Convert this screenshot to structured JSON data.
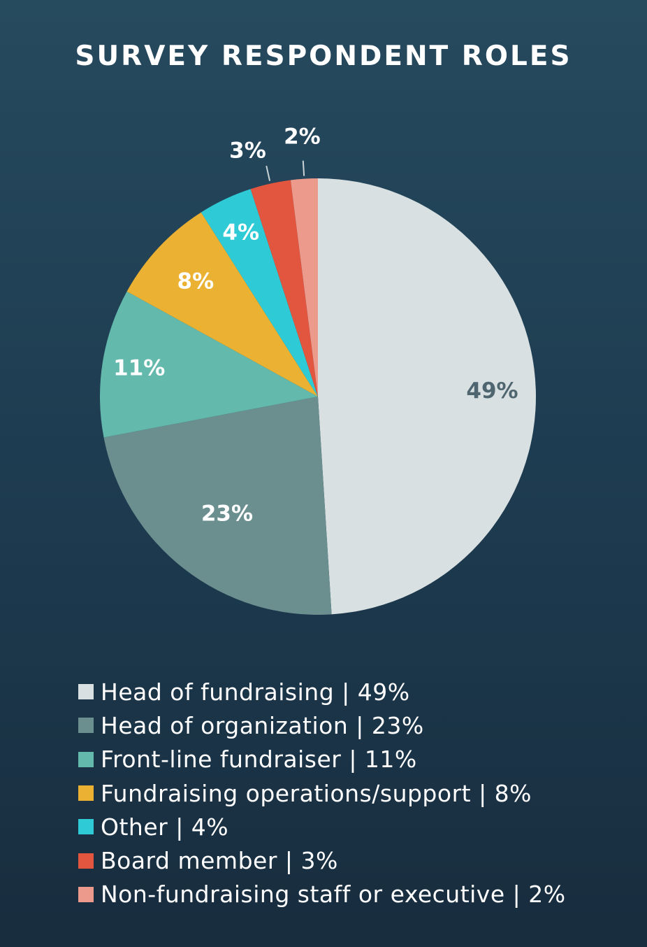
{
  "chart_data": {
    "type": "pie",
    "title": "SURVEY RESPONDENT ROLES",
    "slices": [
      {
        "name": "Head of fundraising",
        "value": 49,
        "label": "49%",
        "legend": "Head of fundraising | 49%",
        "color": "#d8e0e2",
        "label_color": "#4f6570"
      },
      {
        "name": "Head of organization",
        "value": 23,
        "label": "23%",
        "legend": "Head of organization | 23%",
        "color": "#6b8e8f",
        "label_color": "#ffffff"
      },
      {
        "name": "Front-line fundraiser",
        "value": 11,
        "label": "11%",
        "legend": "Front-line fundraiser | 11%",
        "color": "#62b9ac",
        "label_color": "#ffffff"
      },
      {
        "name": "Fundraising operations/support",
        "value": 8,
        "label": "8%",
        "legend": "Fundraising operations/support | 8%",
        "color": "#ebb132",
        "label_color": "#ffffff"
      },
      {
        "name": "Other",
        "value": 4,
        "label": "4%",
        "legend": "Other | 4%",
        "color": "#2ecbd6",
        "label_color": "#ffffff"
      },
      {
        "name": "Board member",
        "value": 3,
        "label": "3%",
        "legend": "Board member | 3%",
        "color": "#e2553f",
        "label_color": "#ffffff"
      },
      {
        "name": "Non-fundraising staff or executive",
        "value": 2,
        "label": "2%",
        "legend": "Non-fundraising staff or executive | 2%",
        "color": "#ec9a8b",
        "label_color": "#ffffff"
      }
    ]
  }
}
